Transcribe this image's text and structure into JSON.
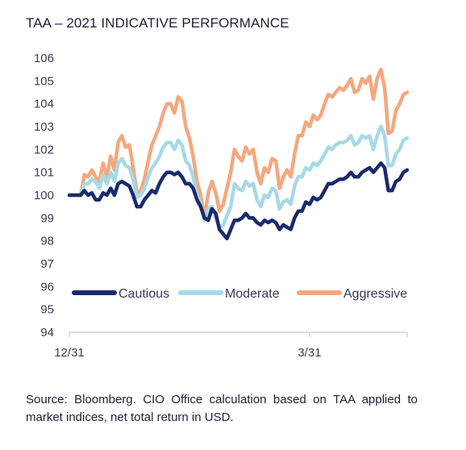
{
  "title": "TAA – 2021 INDICATIVE PERFORMANCE",
  "source": "Source: Bloomberg. CIO Office calculation based on TAA applied to market indices, net total return in USD.",
  "chart_data": {
    "type": "line",
    "title": "TAA – 2021 INDICATIVE PERFORMANCE",
    "xlabel": "",
    "ylabel": "",
    "ylim": [
      94,
      106
    ],
    "yticks": [
      "94",
      "95",
      "96",
      "97",
      "98",
      "99",
      "100",
      "101",
      "102",
      "103",
      "104",
      "105",
      "106"
    ],
    "xtick_labels": [
      "12/31",
      "3/31"
    ],
    "xtick_positions": [
      0,
      64
    ],
    "legend": "inside-bottom",
    "grid": false,
    "series": [
      {
        "name": "Cautious",
        "color": "#1a2a6c",
        "values": [
          100.0,
          100.0,
          100.0,
          100.0,
          100.2,
          100.0,
          100.1,
          99.8,
          99.8,
          100.1,
          100.0,
          100.3,
          100.0,
          100.5,
          100.6,
          100.5,
          100.4,
          100.0,
          99.5,
          99.5,
          99.8,
          100.0,
          100.2,
          100.1,
          100.5,
          100.8,
          101.0,
          101.0,
          100.9,
          101.0,
          100.8,
          100.5,
          100.5,
          100.3,
          99.8,
          99.5,
          99.0,
          98.9,
          99.4,
          99.2,
          98.5,
          98.3,
          98.1,
          98.5,
          98.9,
          98.9,
          99.0,
          99.2,
          99.0,
          99.0,
          98.8,
          98.7,
          98.9,
          98.8,
          98.9,
          98.8,
          98.5,
          98.7,
          98.6,
          98.5,
          99.0,
          99.3,
          99.3,
          99.7,
          99.6,
          99.9,
          99.8,
          99.9,
          100.2,
          100.5,
          100.5,
          100.6,
          100.7,
          100.7,
          100.8,
          101.0,
          100.8,
          100.8,
          101.0,
          101.1,
          101.2,
          101.0,
          101.2,
          101.4,
          101.2,
          100.2,
          100.2,
          100.6,
          100.7,
          101.0,
          101.1
        ]
      },
      {
        "name": "Moderate",
        "color": "#a6d9e8",
        "values": [
          100.0,
          100.0,
          100.0,
          100.0,
          100.5,
          100.5,
          100.7,
          100.6,
          100.3,
          100.9,
          100.5,
          101.0,
          100.6,
          101.4,
          101.6,
          101.3,
          101.2,
          100.7,
          99.9,
          100.0,
          100.3,
          100.8,
          101.2,
          101.4,
          101.7,
          102.1,
          102.3,
          102.3,
          102.0,
          102.4,
          102.2,
          101.5,
          101.3,
          100.8,
          100.0,
          99.6,
          98.9,
          99.4,
          99.5,
          99.0,
          98.6,
          98.7,
          99.1,
          99.5,
          100.5,
          100.3,
          100.2,
          100.6,
          100.4,
          100.5,
          99.8,
          99.5,
          100.0,
          99.9,
          100.3,
          100.2,
          99.4,
          99.7,
          99.8,
          99.6,
          100.4,
          100.8,
          100.8,
          101.2,
          101.1,
          101.4,
          101.3,
          101.5,
          101.8,
          102.1,
          102.0,
          102.2,
          102.3,
          102.3,
          102.4,
          102.6,
          102.2,
          102.3,
          102.6,
          102.5,
          102.6,
          102.0,
          102.6,
          103.0,
          102.6,
          101.3,
          101.3,
          101.8,
          102.0,
          102.4,
          102.5
        ]
      },
      {
        "name": "Aggressive",
        "color": "#f5a77e",
        "values": [
          100.0,
          100.0,
          100.0,
          100.0,
          100.9,
          100.8,
          101.1,
          100.8,
          100.6,
          101.4,
          100.8,
          101.7,
          101.1,
          102.3,
          102.6,
          102.1,
          102.2,
          101.2,
          100.1,
          100.2,
          100.7,
          101.5,
          102.2,
          102.6,
          103.0,
          103.6,
          104.0,
          104.0,
          103.6,
          104.3,
          104.1,
          103.0,
          102.5,
          101.7,
          100.6,
          100.0,
          99.0,
          100.1,
          100.6,
          100.1,
          99.3,
          99.6,
          100.3,
          101.0,
          102.0,
          101.7,
          101.5,
          102.1,
          101.8,
          102.0,
          101.0,
          100.5,
          101.2,
          101.0,
          101.6,
          101.5,
          100.3,
          100.8,
          101.1,
          100.8,
          101.8,
          102.6,
          102.6,
          103.2,
          103.0,
          103.5,
          103.3,
          103.5,
          104.0,
          104.4,
          104.3,
          104.5,
          104.7,
          104.6,
          104.8,
          105.1,
          104.5,
          104.6,
          105.1,
          104.9,
          105.2,
          104.2,
          105.1,
          105.5,
          104.7,
          102.7,
          102.8,
          103.7,
          104.0,
          104.4,
          104.5
        ]
      }
    ]
  }
}
